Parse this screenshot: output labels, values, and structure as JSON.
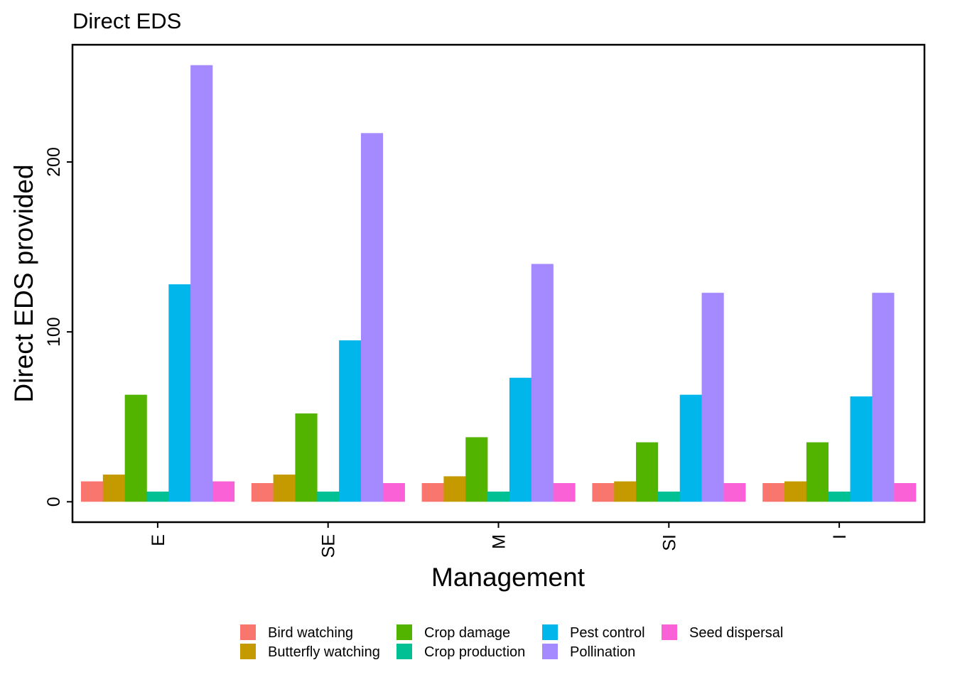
{
  "chart_data": {
    "type": "bar",
    "title": "Direct EDS",
    "xlabel": "Management",
    "ylabel": "Direct EDS provided",
    "categories": [
      "E",
      "SE",
      "M",
      "SI",
      "I"
    ],
    "yticks": [
      0,
      100,
      200
    ],
    "ylim": [
      -12,
      269
    ],
    "grid": false,
    "legend_position": "bottom",
    "series": [
      {
        "name": "Bird watching",
        "color": "#F8766D",
        "values": [
          12,
          11,
          11,
          11,
          11
        ]
      },
      {
        "name": "Butterfly watching",
        "color": "#C49A00",
        "values": [
          16,
          16,
          15,
          12,
          12
        ]
      },
      {
        "name": "Crop damage",
        "color": "#53B400",
        "values": [
          63,
          52,
          38,
          35,
          35
        ]
      },
      {
        "name": "Crop production",
        "color": "#00C094",
        "values": [
          6,
          6,
          6,
          6,
          6
        ]
      },
      {
        "name": "Pest control",
        "color": "#00B6EB",
        "values": [
          128,
          95,
          73,
          63,
          62
        ]
      },
      {
        "name": "Pollination",
        "color": "#A58AFF",
        "values": [
          257,
          217,
          140,
          123,
          123
        ]
      },
      {
        "name": "Seed dispersal",
        "color": "#FB61D7",
        "values": [
          12,
          11,
          11,
          11,
          11
        ]
      }
    ]
  }
}
